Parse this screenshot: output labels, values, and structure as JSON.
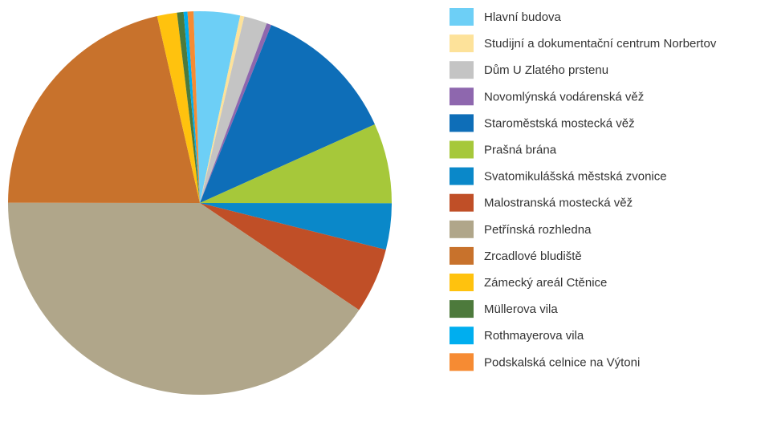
{
  "chart_data": {
    "type": "pie",
    "categories": [
      "Hlavní budova",
      "Studijní a dokumentační centrum Norbertov",
      "Dům U Zlatého prstenu",
      "Novomlýnská vodárenská věž",
      "Staroměstská mostecká věž",
      "Prašná brána",
      "Svatomikulášská městská zvonice",
      "Malostranská mostecká věž",
      "Petřínská rozhledna",
      "Zrcadlové bludiště",
      "Zámecký areál Ctěnice",
      "Müllerova vila",
      "Rothmayerova vila",
      "Podskalská celnice na Výtoni"
    ],
    "values": [
      3.9,
      0.35,
      1.95,
      0.4,
      12.2,
      6.75,
      3.9,
      5.5,
      40.6,
      21.4,
      1.67,
      0.55,
      0.33,
      0.5
    ],
    "colors": [
      "#6dcff6",
      "#fde29a",
      "#c4c4c4",
      "#8e67ae",
      "#0e6eb8",
      "#a6c83a",
      "#0a88c9",
      "#c04f27",
      "#b0a68a",
      "#c8722c",
      "#ffc20e",
      "#4d7a3c",
      "#00aeef",
      "#f68b33"
    ],
    "legend": "right"
  }
}
